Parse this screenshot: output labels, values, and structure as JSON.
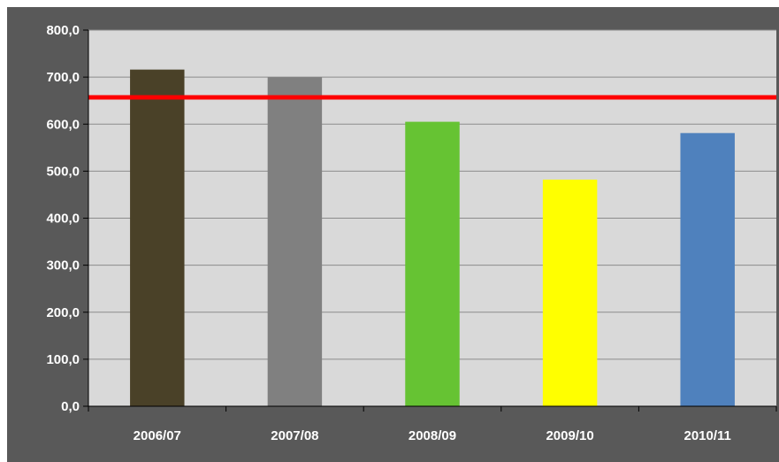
{
  "chart_data": {
    "type": "bar",
    "categories": [
      "2006/07",
      "2007/08",
      "2008/09",
      "2009/10",
      "2010/11"
    ],
    "values": [
      716,
      700,
      605,
      482,
      581
    ],
    "bar_colors": [
      "#4a4128",
      "#808080",
      "#66c333",
      "#ffff00",
      "#4f81bd"
    ],
    "reference_line": {
      "value": 657,
      "color": "#ff0000"
    },
    "ylim": [
      0,
      800
    ],
    "y_ticks": [
      0,
      100,
      200,
      300,
      400,
      500,
      600,
      700,
      800
    ],
    "y_tick_labels": [
      "0,0",
      "100,0",
      "200,0",
      "300,0",
      "400,0",
      "500,0",
      "600,0",
      "700,0",
      "800,0"
    ],
    "grid": true,
    "plot_background": "#d9d9d9",
    "title": "",
    "xlabel": "",
    "ylabel": ""
  }
}
